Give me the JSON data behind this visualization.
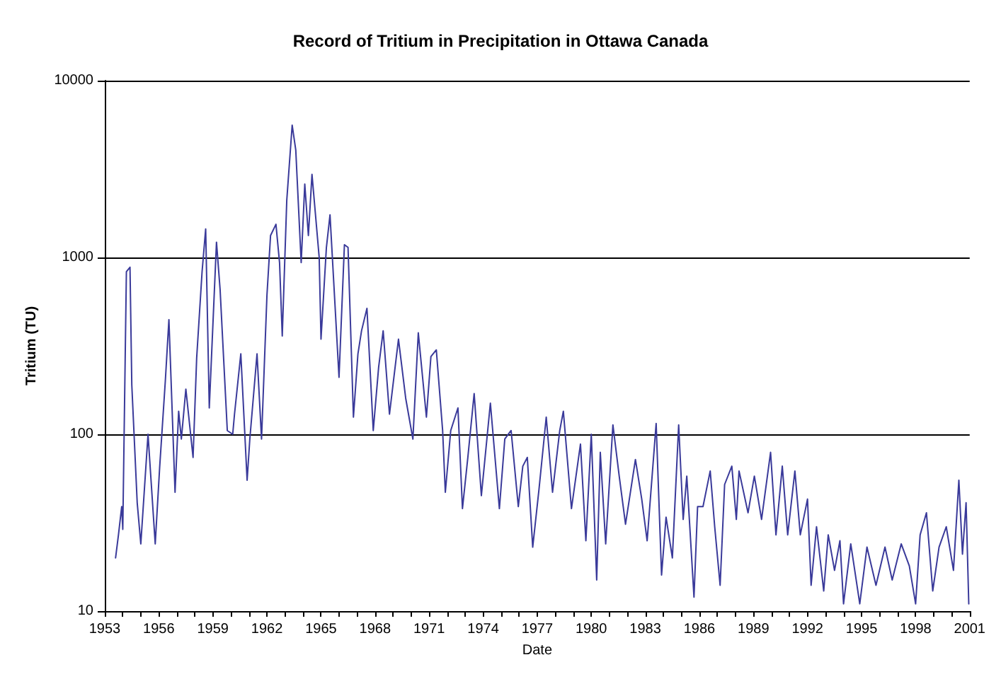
{
  "chart_data": {
    "type": "line",
    "title": "Record of Tritium in Precipitation in Ottawa Canada",
    "xlabel": "Date",
    "ylabel": "Tritium (TU)",
    "x": [
      1953.6,
      1953.76,
      1953.94,
      1954.0,
      1954.2,
      1954.4,
      1954.5,
      1954.8,
      1955.0,
      1955.4,
      1955.6,
      1955.8,
      1956.05,
      1956.36,
      1956.56,
      1956.9,
      1957.1,
      1957.25,
      1957.5,
      1957.9,
      1958.1,
      1958.4,
      1958.6,
      1958.8,
      1959.2,
      1959.4,
      1959.8,
      1960.1,
      1960.2,
      1960.55,
      1960.9,
      1961.05,
      1961.45,
      1961.7,
      1962.0,
      1962.2,
      1962.5,
      1962.7,
      1962.85,
      1963.1,
      1963.4,
      1963.6,
      1963.9,
      1964.1,
      1964.3,
      1964.5,
      1964.9,
      1965.0,
      1965.3,
      1965.5,
      1966.0,
      1966.3,
      1966.5,
      1966.8,
      1967.05,
      1967.25,
      1967.55,
      1967.9,
      1968.2,
      1968.45,
      1968.8,
      1969.3,
      1969.7,
      1970.1,
      1970.4,
      1970.85,
      1971.1,
      1971.4,
      1971.75,
      1971.9,
      1972.2,
      1972.6,
      1972.85,
      1973.15,
      1973.5,
      1973.9,
      1974.4,
      1974.9,
      1975.2,
      1975.55,
      1975.95,
      1976.2,
      1976.45,
      1976.75,
      1977.1,
      1977.5,
      1977.85,
      1978.25,
      1978.45,
      1978.9,
      1979.4,
      1979.7,
      1980.0,
      1980.3,
      1980.5,
      1980.8,
      1981.2,
      1981.55,
      1981.9,
      1982.45,
      1982.8,
      1983.1,
      1983.6,
      1983.9,
      1984.15,
      1984.5,
      1984.85,
      1985.1,
      1985.3,
      1985.7,
      1985.9,
      1986.2,
      1986.6,
      1986.85,
      1987.15,
      1987.4,
      1987.8,
      1988.05,
      1988.2,
      1988.7,
      1989.05,
      1989.45,
      1989.95,
      1990.25,
      1990.6,
      1990.9,
      1991.3,
      1991.6,
      1992.0,
      1992.2,
      1992.5,
      1992.9,
      1993.15,
      1993.5,
      1993.8,
      1994.0,
      1994.4,
      1994.9,
      1995.3,
      1995.8,
      1996.3,
      1996.7,
      1997.2,
      1997.65,
      1998.0,
      1998.25,
      1998.6,
      1998.95,
      1999.3,
      1999.7,
      2000.1,
      2000.4,
      2000.6,
      2000.8,
      2000.95
    ],
    "series": [
      {
        "color": "#3a3a9a",
        "values": [
          20,
          27,
          39,
          29,
          830,
          880,
          190,
          41,
          24,
          100,
          49,
          24,
          66,
          200,
          445,
          47,
          135,
          94,
          180,
          74,
          270,
          830,
          1450,
          141,
          1220,
          660,
          105,
          100,
          130,
          285,
          55,
          94,
          285,
          94,
          610,
          1330,
          1540,
          935,
          360,
          2100,
          5600,
          4050,
          935,
          2600,
          1330,
          2950,
          1000,
          345,
          1140,
          1740,
          210,
          1180,
          1140,
          125,
          285,
          385,
          515,
          105,
          240,
          385,
          130,
          345,
          160,
          94,
          375,
          125,
          275,
          300,
          105,
          47,
          105,
          141,
          38,
          74,
          170,
          45,
          150,
          38,
          94,
          105,
          39,
          66,
          74,
          23,
          49,
          125,
          47,
          105,
          135,
          38,
          88,
          25,
          100,
          15,
          79,
          24,
          113,
          58,
          31,
          72,
          43,
          25,
          115,
          16,
          34,
          20,
          113,
          33,
          58,
          12,
          39,
          39,
          62,
          30,
          14,
          52,
          66,
          33,
          62,
          36,
          58,
          33,
          79,
          27,
          66,
          27,
          62,
          27,
          43,
          14,
          30,
          13,
          27,
          17,
          25,
          11,
          24,
          11,
          23,
          14,
          23,
          15,
          24,
          18,
          11,
          27,
          36,
          13,
          23,
          30,
          17,
          55,
          21,
          41,
          11
        ]
      }
    ],
    "xlim": [
      1953,
      2001
    ],
    "xticks": [
      1953,
      {
        "value": 1954,
        "label": null
      },
      {
        "value": 1955,
        "label": null
      },
      1956,
      {
        "value": 1957,
        "label": null
      },
      {
        "value": 1958,
        "label": null
      },
      1959,
      {
        "value": 1960,
        "label": null
      },
      {
        "value": 1961,
        "label": null
      },
      1962,
      {
        "value": 1963,
        "label": null
      },
      {
        "value": 1964,
        "label": null
      },
      1965,
      {
        "value": 1966,
        "label": null
      },
      {
        "value": 1967,
        "label": null
      },
      1968,
      {
        "value": 1969,
        "label": null
      },
      {
        "value": 1970,
        "label": null
      },
      1971,
      {
        "value": 1972,
        "label": null
      },
      {
        "value": 1973,
        "label": null
      },
      1974,
      {
        "value": 1975,
        "label": null
      },
      {
        "value": 1976,
        "label": null
      },
      1977,
      {
        "value": 1978,
        "label": null
      },
      {
        "value": 1979,
        "label": null
      },
      1980,
      {
        "value": 1981,
        "label": null
      },
      {
        "value": 1982,
        "label": null
      },
      1983,
      {
        "value": 1984,
        "label": null
      },
      {
        "value": 1985,
        "label": null
      },
      1986,
      {
        "value": 1987,
        "label": null
      },
      {
        "value": 1988,
        "label": null
      },
      1989,
      {
        "value": 1990,
        "label": null
      },
      {
        "value": 1991,
        "label": null
      },
      1992,
      {
        "value": 1993,
        "label": null
      },
      {
        "value": 1994,
        "label": null
      },
      1995,
      {
        "value": 1996,
        "label": null
      },
      {
        "value": 1997,
        "label": null
      },
      1998,
      {
        "value": 1999,
        "label": null
      },
      {
        "value": 2000,
        "label": null
      },
      2001
    ],
    "ylim": [
      10,
      10000
    ],
    "yticks": [
      10,
      100,
      1000,
      10000
    ],
    "log": true,
    "grid": "y",
    "marker": "none",
    "line_style": "solid"
  }
}
